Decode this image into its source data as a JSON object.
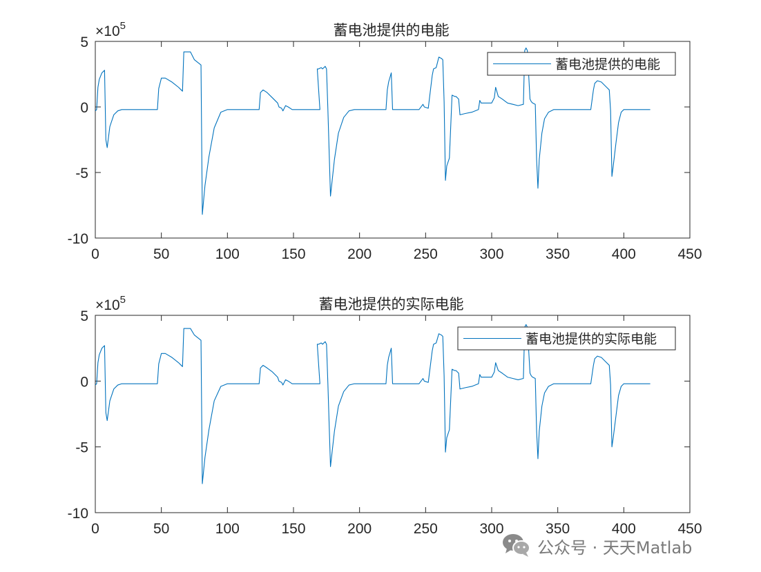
{
  "watermark": {
    "text": "公众号 · 天天Matlab",
    "icon": "wechat-icon"
  },
  "line_color": "#0072BD",
  "chart_data": [
    {
      "type": "line",
      "title": "蓄电池提供的电能",
      "legend": "top-right",
      "xlim": [
        0,
        450
      ],
      "ylim": [
        -10,
        5
      ],
      "y_exponent": "5",
      "xticks": [
        "0",
        "50",
        "100",
        "150",
        "200",
        "250",
        "300",
        "350",
        "400",
        "450"
      ],
      "yticks": [
        "-10",
        "-5",
        "0",
        "5"
      ],
      "grid": false,
      "series": [
        {
          "name": "蓄电池提供的电能",
          "x": [
            0,
            1,
            2,
            3,
            5,
            7,
            8,
            9,
            11,
            14,
            17,
            20,
            30,
            40,
            47,
            48,
            50,
            53,
            58,
            63,
            65,
            66,
            67,
            70,
            72,
            75,
            80,
            81,
            83,
            86,
            90,
            95,
            100,
            110,
            120,
            124,
            125,
            127,
            130,
            134,
            138,
            139,
            141,
            142,
            144,
            146,
            149,
            153,
            160,
            170,
            168,
            169,
            171,
            172,
            174,
            175,
            176,
            178,
            181,
            184,
            188,
            192,
            196,
            200,
            210,
            220,
            221,
            222,
            224,
            225,
            228,
            235,
            240,
            245,
            248,
            249,
            252,
            255,
            256,
            258,
            260,
            262,
            263,
            264,
            265,
            266,
            268,
            270,
            272,
            273,
            275,
            276,
            280,
            285,
            290,
            291,
            292,
            296,
            300,
            302,
            303,
            305,
            308,
            312,
            316,
            320,
            324,
            325,
            326,
            327,
            329,
            330,
            331,
            333,
            334,
            335,
            336,
            338,
            340,
            343,
            347,
            352,
            357,
            365,
            375,
            377,
            378,
            380,
            383,
            386,
            389,
            390,
            391,
            392,
            394,
            396,
            398,
            400,
            405,
            410,
            420
          ],
          "values": [
            -0.3,
            -0.2,
            1.5,
            2.1,
            2.6,
            2.8,
            -2.5,
            -3.1,
            -1.5,
            -0.6,
            -0.3,
            -0.2,
            -0.2,
            -0.2,
            -0.2,
            1.4,
            2.2,
            2.2,
            1.9,
            1.5,
            1.3,
            1.2,
            4.2,
            4.2,
            4.2,
            3.6,
            3.2,
            -8.2,
            -6.0,
            -3.8,
            -1.6,
            -0.4,
            -0.2,
            -0.2,
            -0.2,
            -0.2,
            1.1,
            1.3,
            1.1,
            0.7,
            0.3,
            0.0,
            -0.1,
            -0.3,
            0.1,
            0.0,
            -0.2,
            -0.2,
            -0.2,
            -0.2,
            2.9,
            2.9,
            3.0,
            2.9,
            3.1,
            2.9,
            -0.1,
            -6.8,
            -4.0,
            -2.0,
            -0.8,
            -0.3,
            -0.2,
            -0.2,
            -0.2,
            -0.2,
            1.3,
            1.9,
            2.6,
            -0.2,
            -0.2,
            -0.2,
            -0.2,
            -0.2,
            0.2,
            0.0,
            -0.1,
            2.4,
            2.9,
            3.0,
            3.8,
            3.7,
            3.6,
            0.4,
            -5.6,
            -4.5,
            -3.9,
            0.9,
            0.8,
            0.8,
            0.6,
            -0.6,
            -0.5,
            -0.4,
            -0.2,
            0.5,
            0.3,
            0.3,
            0.3,
            0.7,
            1.5,
            0.8,
            0.6,
            0.3,
            0.2,
            0.1,
            0.2,
            4.3,
            4.5,
            4.3,
            0.6,
            0.4,
            0.3,
            0.2,
            -4.0,
            -6.2,
            -4.0,
            -2.0,
            -0.9,
            -0.4,
            -0.2,
            -0.2,
            -0.2,
            -0.2,
            -0.2,
            1.3,
            1.8,
            2.0,
            1.9,
            1.6,
            1.3,
            -0.3,
            -5.3,
            -4.5,
            -2.8,
            -1.2,
            -0.4,
            -0.2,
            -0.2,
            -0.2,
            -0.2
          ]
        }
      ]
    },
    {
      "type": "line",
      "title": "蓄电池提供的实际电能",
      "legend": "top-right",
      "xlim": [
        0,
        450
      ],
      "ylim": [
        -10,
        5
      ],
      "y_exponent": "5",
      "xticks": [
        "0",
        "50",
        "100",
        "150",
        "200",
        "250",
        "300",
        "350",
        "400",
        "450"
      ],
      "yticks": [
        "-10",
        "-5",
        "0",
        "5"
      ],
      "grid": false,
      "series": [
        {
          "name": "蓄电池提供的实际电能",
          "x": [
            0,
            1,
            2,
            3,
            5,
            7,
            8,
            9,
            11,
            14,
            17,
            20,
            30,
            40,
            47,
            48,
            50,
            53,
            58,
            63,
            65,
            66,
            67,
            70,
            72,
            75,
            80,
            81,
            83,
            86,
            90,
            95,
            100,
            110,
            120,
            124,
            125,
            127,
            130,
            134,
            138,
            139,
            141,
            142,
            144,
            146,
            149,
            153,
            160,
            170,
            168,
            169,
            171,
            172,
            174,
            175,
            176,
            178,
            181,
            184,
            188,
            192,
            196,
            200,
            210,
            220,
            221,
            222,
            224,
            225,
            228,
            235,
            240,
            245,
            248,
            249,
            252,
            255,
            256,
            258,
            260,
            262,
            263,
            264,
            265,
            266,
            268,
            270,
            272,
            273,
            275,
            276,
            280,
            285,
            290,
            291,
            292,
            296,
            300,
            302,
            303,
            305,
            308,
            312,
            316,
            320,
            324,
            325,
            326,
            327,
            329,
            330,
            331,
            333,
            334,
            335,
            336,
            338,
            340,
            343,
            347,
            352,
            357,
            365,
            375,
            377,
            378,
            380,
            383,
            386,
            389,
            390,
            391,
            392,
            394,
            396,
            398,
            400,
            405,
            410,
            420
          ],
          "values": [
            -0.3,
            -0.2,
            1.4,
            2.0,
            2.5,
            2.7,
            -2.4,
            -3.0,
            -1.5,
            -0.6,
            -0.3,
            -0.2,
            -0.2,
            -0.2,
            -0.2,
            1.3,
            2.1,
            2.1,
            1.8,
            1.4,
            1.2,
            1.1,
            4.0,
            4.0,
            4.0,
            3.5,
            3.1,
            -7.8,
            -5.8,
            -3.7,
            -1.5,
            -0.4,
            -0.2,
            -0.2,
            -0.2,
            -0.2,
            1.0,
            1.2,
            1.0,
            0.7,
            0.3,
            0.0,
            -0.1,
            -0.3,
            0.1,
            0.0,
            -0.2,
            -0.2,
            -0.2,
            -0.2,
            2.8,
            2.8,
            2.9,
            2.8,
            3.0,
            2.8,
            -0.1,
            -6.5,
            -3.8,
            -1.9,
            -0.8,
            -0.3,
            -0.2,
            -0.2,
            -0.2,
            -0.2,
            1.2,
            1.8,
            2.5,
            -0.2,
            -0.2,
            -0.2,
            -0.2,
            -0.2,
            0.2,
            0.0,
            -0.1,
            2.3,
            2.8,
            2.9,
            3.6,
            3.5,
            3.4,
            0.4,
            -5.4,
            -4.3,
            -3.7,
            0.9,
            0.8,
            0.8,
            0.6,
            -0.6,
            -0.5,
            -0.4,
            -0.2,
            0.5,
            0.3,
            0.3,
            0.3,
            0.7,
            1.4,
            0.8,
            0.6,
            0.3,
            0.2,
            0.1,
            0.2,
            4.1,
            4.3,
            4.1,
            0.6,
            0.4,
            0.3,
            0.2,
            -3.8,
            -5.9,
            -3.8,
            -1.9,
            -0.9,
            -0.4,
            -0.2,
            -0.2,
            -0.2,
            -0.2,
            -0.2,
            1.2,
            1.7,
            1.9,
            1.8,
            1.5,
            1.2,
            -0.3,
            -5.0,
            -4.3,
            -2.7,
            -1.1,
            -0.4,
            -0.2,
            -0.2,
            -0.2,
            -0.2
          ]
        }
      ]
    }
  ]
}
